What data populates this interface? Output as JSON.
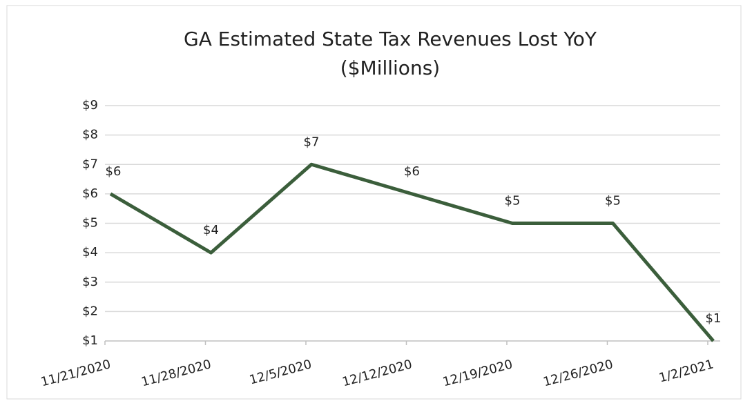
{
  "chart_data": {
    "type": "line",
    "title": "GA Estimated State Tax Revenues  Lost YoY",
    "subtitle": "($Millions)",
    "categories": [
      "11/21/2020",
      "11/28/2020",
      "12/5/2020",
      "12/12/2020",
      "12/19/2020",
      "12/26/2020",
      "1/2/2021"
    ],
    "series": [
      {
        "color": "#3b5e3b",
        "values": [
          6,
          4,
          7,
          6,
          5,
          5,
          1
        ],
        "value_labels": [
          "$6",
          "$4",
          "$7",
          "$6",
          "$5",
          "$5",
          "$1"
        ]
      }
    ],
    "ylim": [
      1,
      9
    ],
    "yticks": [
      {
        "value": 1,
        "label": "$1"
      },
      {
        "value": 2,
        "label": "$2"
      },
      {
        "value": 3,
        "label": "$3"
      },
      {
        "value": 4,
        "label": "$4"
      },
      {
        "value": 5,
        "label": "$5"
      },
      {
        "value": 6,
        "label": "$6"
      },
      {
        "value": 7,
        "label": "$7"
      },
      {
        "value": 8,
        "label": "$8"
      },
      {
        "value": 9,
        "label": "$9"
      }
    ],
    "grid": true
  }
}
